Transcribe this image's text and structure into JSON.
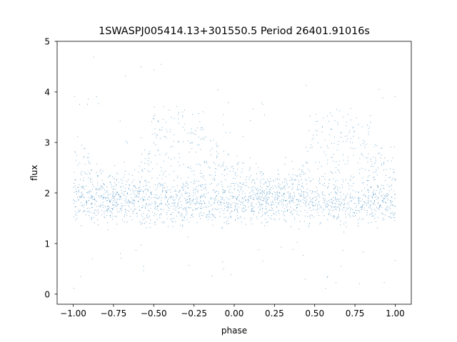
{
  "chart_data": {
    "type": "scatter",
    "title": "1SWASPJ005414.13+301550.5 Period 26401.91016s",
    "xlabel": "phase",
    "ylabel": "flux",
    "xlim": [
      -1.1,
      1.1
    ],
    "ylim": [
      -0.2,
      5.0
    ],
    "xticks": [
      -1.0,
      -0.75,
      -0.5,
      -0.25,
      0.0,
      0.25,
      0.5,
      0.75,
      1.0
    ],
    "xtick_labels": [
      "−1.00",
      "−0.75",
      "−0.50",
      "−0.25",
      "0.00",
      "0.25",
      "0.50",
      "0.75",
      "1.00"
    ],
    "yticks": [
      0,
      1,
      2,
      3,
      4,
      5
    ],
    "ytick_labels": [
      "0",
      "1",
      "2",
      "3",
      "4",
      "5"
    ],
    "grid": false,
    "legend": "none",
    "marker_color": "#1f77b4",
    "series": [
      {
        "phase_range": [
          -1.0,
          1.0
        ],
        "baseline_flux": 1.8,
        "baseline_scatter": 0.2,
        "upper_envelope": [
          {
            "phase": -1.0,
            "flux": 3.0
          },
          {
            "phase": -0.8,
            "flux": 2.3
          },
          {
            "phase": -0.6,
            "flux": 2.4
          },
          {
            "phase": -0.5,
            "flux": 3.5
          },
          {
            "phase": -0.35,
            "flux": 3.7
          },
          {
            "phase": -0.2,
            "flux": 3.6
          },
          {
            "phase": -0.1,
            "flux": 3.0
          },
          {
            "phase": 0.0,
            "flux": 2.6
          },
          {
            "phase": 0.2,
            "flux": 2.3
          },
          {
            "phase": 0.4,
            "flux": 2.5
          },
          {
            "phase": 0.5,
            "flux": 3.5
          },
          {
            "phase": 0.65,
            "flux": 3.7
          },
          {
            "phase": 0.8,
            "flux": 3.6
          },
          {
            "phase": 0.9,
            "flux": 3.0
          },
          {
            "phase": 1.0,
            "flux": 2.6
          }
        ]
      }
    ]
  }
}
